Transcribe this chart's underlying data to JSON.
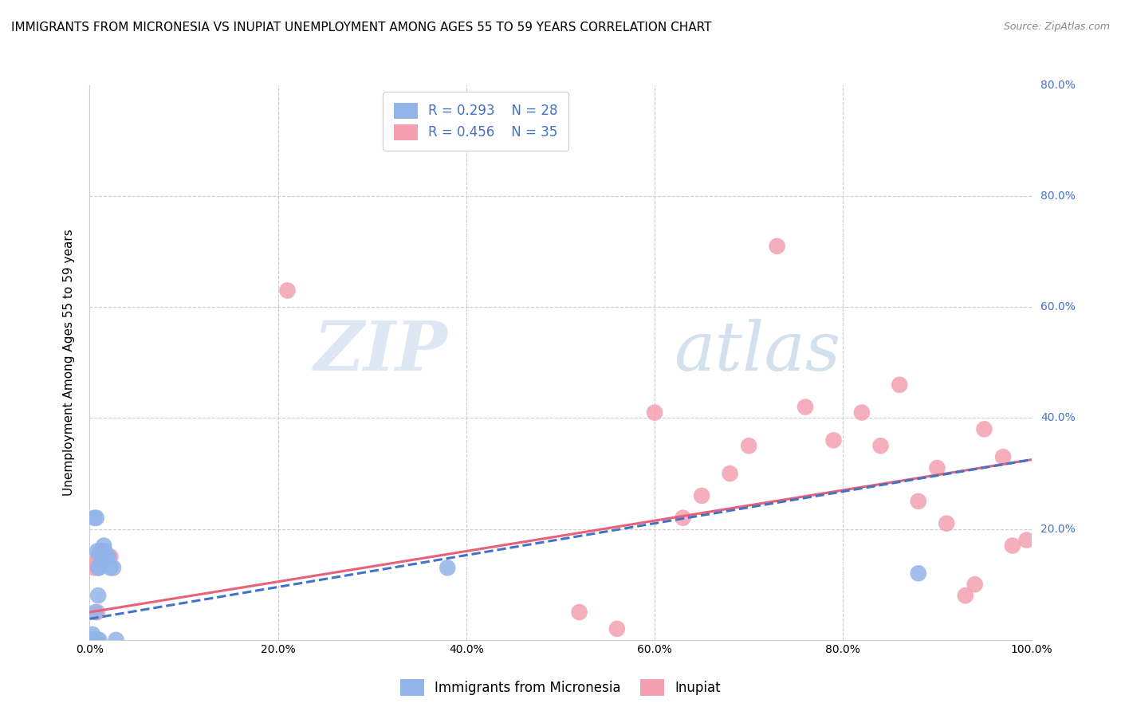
{
  "title": "IMMIGRANTS FROM MICRONESIA VS INUPIAT UNEMPLOYMENT AMONG AGES 55 TO 59 YEARS CORRELATION CHART",
  "source": "Source: ZipAtlas.com",
  "ylabel": "Unemployment Among Ages 55 to 59 years",
  "legend_label1": "Immigrants from Micronesia",
  "legend_label2": "Inupiat",
  "r1": 0.293,
  "n1": 28,
  "r2": 0.456,
  "n2": 35,
  "color1": "#92b4e8",
  "color2": "#f4a0b0",
  "line_color1": "#4472c4",
  "line_color2": "#e8607a",
  "grid_color": "#cccccc",
  "background_color": "#ffffff",
  "title_fontsize": 11,
  "axis_label_fontsize": 11,
  "tick_fontsize": 10,
  "legend_fontsize": 12,
  "xlim": [
    0.0,
    1.0
  ],
  "ylim": [
    0.0,
    1.0
  ],
  "xticklabels": [
    "0.0%",
    "20.0%",
    "40.0%",
    "60.0%",
    "80.0%",
    "100.0%"
  ],
  "right_ytick_labels": [
    "",
    "20.0%",
    "40.0%",
    "60.0%",
    "80.0%",
    ""
  ],
  "scatter1_x": [
    0.003,
    0.003,
    0.004,
    0.005,
    0.005,
    0.006,
    0.006,
    0.007,
    0.007,
    0.008,
    0.008,
    0.009,
    0.009,
    0.01,
    0.01,
    0.011,
    0.012,
    0.013,
    0.014,
    0.015,
    0.016,
    0.018,
    0.02,
    0.022,
    0.025,
    0.028,
    0.38,
    0.88
  ],
  "scatter1_y": [
    0.0,
    0.01,
    0.0,
    0.0,
    0.22,
    0.0,
    0.05,
    0.22,
    0.0,
    0.0,
    0.16,
    0.13,
    0.08,
    0.13,
    0.0,
    0.16,
    0.15,
    0.14,
    0.14,
    0.17,
    0.16,
    0.15,
    0.15,
    0.13,
    0.13,
    0.0,
    0.13,
    0.12
  ],
  "scatter2_x": [
    0.003,
    0.004,
    0.005,
    0.006,
    0.007,
    0.008,
    0.009,
    0.01,
    0.012,
    0.015,
    0.018,
    0.022,
    0.21,
    0.52,
    0.56,
    0.6,
    0.63,
    0.65,
    0.68,
    0.7,
    0.73,
    0.76,
    0.79,
    0.82,
    0.84,
    0.86,
    0.88,
    0.9,
    0.91,
    0.93,
    0.94,
    0.95,
    0.97,
    0.98,
    0.995
  ],
  "scatter2_y": [
    0.0,
    0.0,
    0.13,
    0.0,
    0.14,
    0.05,
    0.15,
    0.15,
    0.14,
    0.16,
    0.15,
    0.15,
    0.63,
    0.05,
    0.02,
    0.41,
    0.22,
    0.26,
    0.3,
    0.35,
    0.71,
    0.42,
    0.36,
    0.41,
    0.35,
    0.46,
    0.25,
    0.31,
    0.21,
    0.08,
    0.1,
    0.38,
    0.33,
    0.17,
    0.18
  ],
  "line1_x_start": 0.0,
  "line1_x_end": 1.0,
  "line1_y_start": 0.05,
  "line1_y_end": 0.325,
  "line2_x_start": 0.0,
  "line2_x_end": 1.0,
  "line2_y_start": 0.038,
  "line2_y_end": 0.325
}
